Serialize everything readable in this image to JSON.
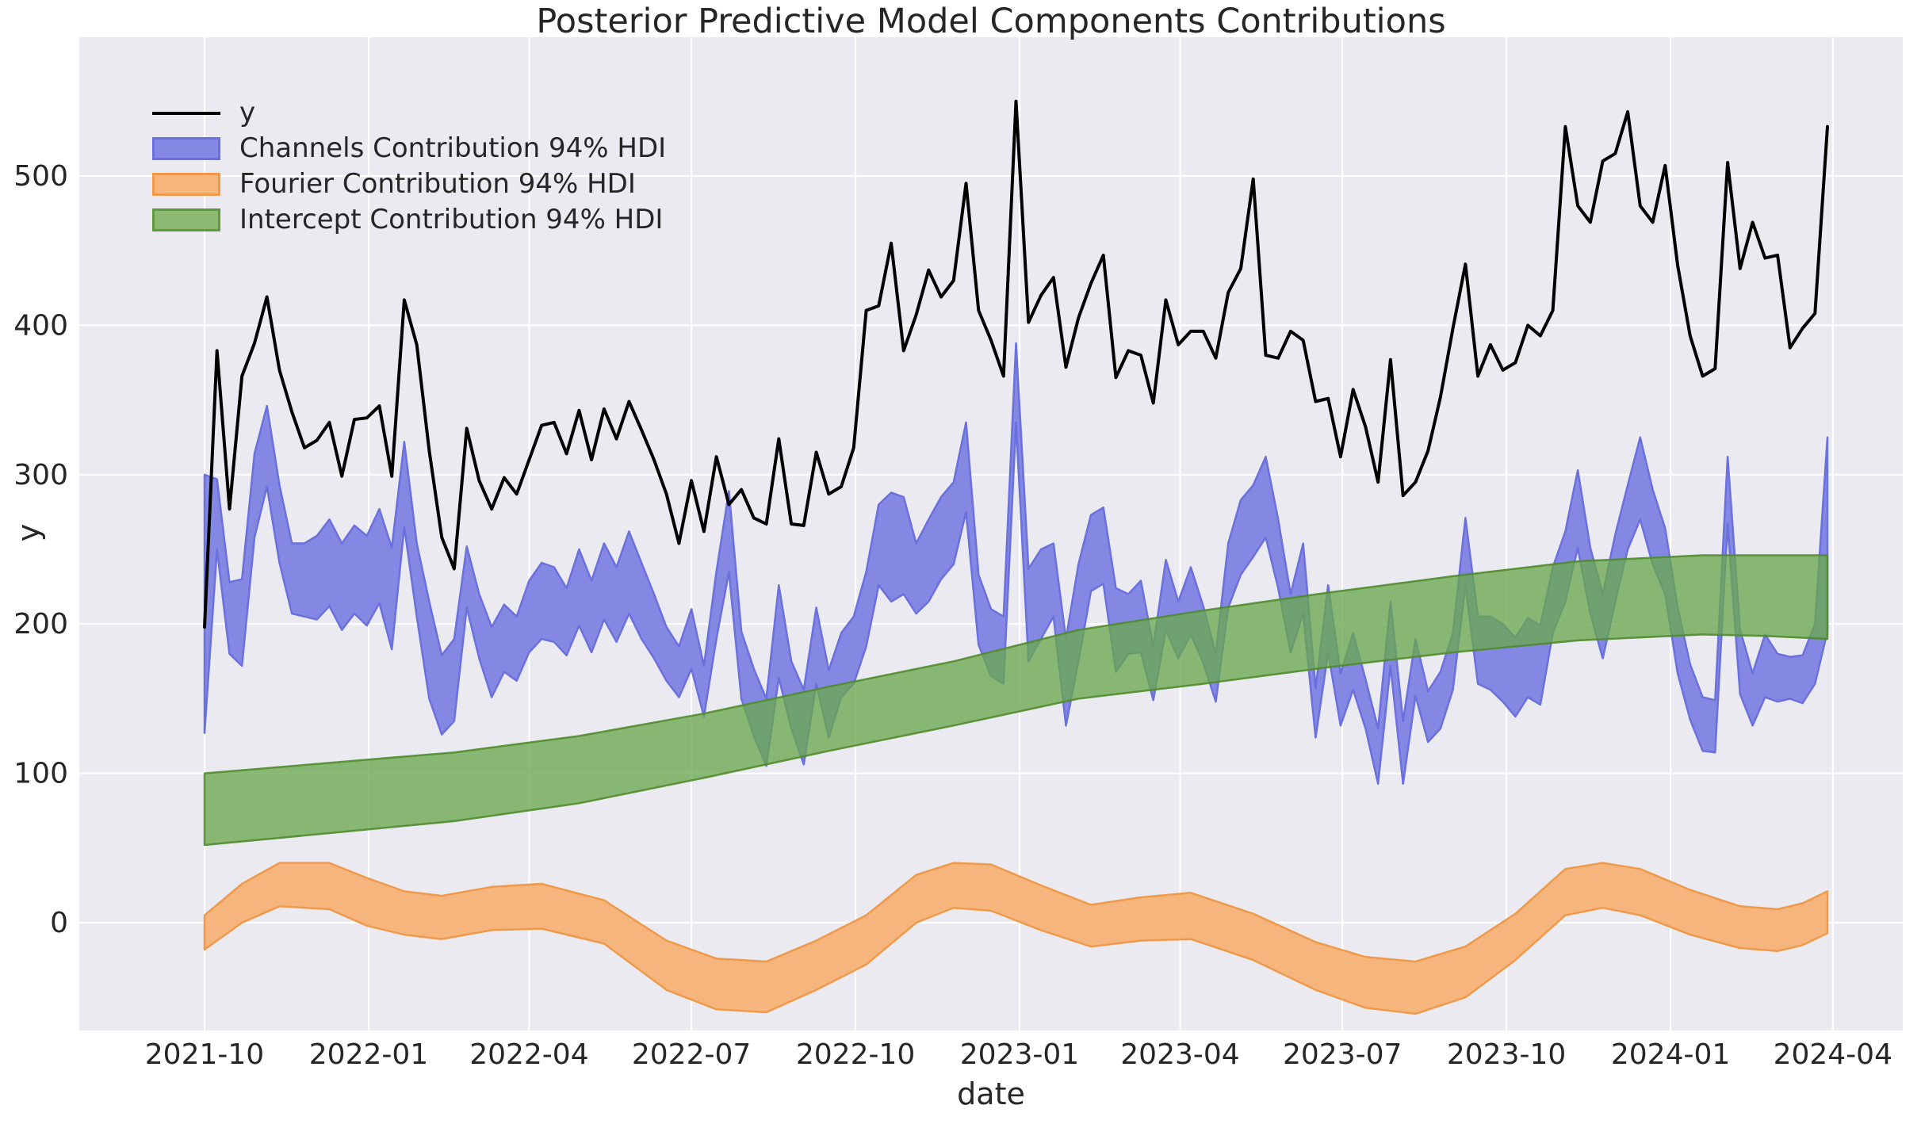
{
  "title": "Posterior Predictive Model Components Contributions",
  "xlabel": "date",
  "ylabel": "y",
  "colors": {
    "plot_background": "#eaeaf0",
    "grid": "#ffffff",
    "text": "#262626",
    "y_line": "#000000",
    "channels_fill": "#8488e3",
    "channels_stroke": "#6a70dc",
    "fourier_fill": "#f6b57d",
    "fourier_stroke": "#ef9a4b",
    "intercept_fill": "rgba(106,168,79,0.78)",
    "intercept_stroke": "rgba(80,140,45,0.9)",
    "intercept_legend_fill": "#8cba72",
    "intercept_legend_stroke": "#5f9a3e"
  },
  "chart_data": {
    "type": "line",
    "title": "Posterior Predictive Model Components Contributions",
    "xlabel": "date",
    "ylabel": "y",
    "grid": true,
    "legend_position": "upper left",
    "ylim": [
      -72,
      593
    ],
    "y_ticks": [
      0,
      100,
      200,
      300,
      400,
      500
    ],
    "x_ticks": [
      "2021-10",
      "2022-01",
      "2022-04",
      "2022-07",
      "2022-10",
      "2023-01",
      "2023-04",
      "2023-07",
      "2023-10",
      "2024-01",
      "2024-04"
    ],
    "legend": [
      {
        "label": "y",
        "kind": "line",
        "color": "#000000"
      },
      {
        "label": "Channels Contribution 94% HDI",
        "kind": "band",
        "fill": "#8488e3",
        "stroke": "#6a70dc"
      },
      {
        "label": "Fourier Contribution 94% HDI",
        "kind": "band",
        "fill": "#f6b57d",
        "stroke": "#ef9a4b"
      },
      {
        "label": "Intercept Contribution 94% HDI",
        "kind": "band",
        "fill": "#8cba72",
        "stroke": "#5f9a3e"
      }
    ],
    "dates": [
      "2021-10-01",
      "2021-10-08",
      "2021-10-15",
      "2021-10-22",
      "2021-10-29",
      "2021-11-05",
      "2021-11-12",
      "2021-11-19",
      "2021-11-26",
      "2021-12-03",
      "2021-12-10",
      "2021-12-17",
      "2021-12-24",
      "2021-12-31",
      "2022-01-07",
      "2022-01-14",
      "2022-01-21",
      "2022-01-28",
      "2022-02-04",
      "2022-02-11",
      "2022-02-18",
      "2022-02-25",
      "2022-03-04",
      "2022-03-11",
      "2022-03-18",
      "2022-03-25",
      "2022-04-01",
      "2022-04-08",
      "2022-04-15",
      "2022-04-22",
      "2022-04-29",
      "2022-05-06",
      "2022-05-13",
      "2022-05-20",
      "2022-05-27",
      "2022-06-03",
      "2022-06-10",
      "2022-06-17",
      "2022-06-24",
      "2022-07-01",
      "2022-07-08",
      "2022-07-15",
      "2022-07-22",
      "2022-07-29",
      "2022-08-05",
      "2022-08-12",
      "2022-08-19",
      "2022-08-26",
      "2022-09-02",
      "2022-09-09",
      "2022-09-16",
      "2022-09-23",
      "2022-09-30",
      "2022-10-07",
      "2022-10-14",
      "2022-10-21",
      "2022-10-28",
      "2022-11-04",
      "2022-11-11",
      "2022-11-18",
      "2022-11-25",
      "2022-12-02",
      "2022-12-09",
      "2022-12-16",
      "2022-12-23",
      "2022-12-30",
      "2023-01-06",
      "2023-01-13",
      "2023-01-20",
      "2023-01-27",
      "2023-02-03",
      "2023-02-10",
      "2023-02-17",
      "2023-02-24",
      "2023-03-03",
      "2023-03-10",
      "2023-03-17",
      "2023-03-24",
      "2023-03-31",
      "2023-04-07",
      "2023-04-14",
      "2023-04-21",
      "2023-04-28",
      "2023-05-05",
      "2023-05-12",
      "2023-05-19",
      "2023-05-26",
      "2023-06-02",
      "2023-06-09",
      "2023-06-16",
      "2023-06-23",
      "2023-06-30",
      "2023-07-07",
      "2023-07-14",
      "2023-07-21",
      "2023-07-28",
      "2023-08-04",
      "2023-08-11",
      "2023-08-18",
      "2023-08-25",
      "2023-09-01",
      "2023-09-08",
      "2023-09-15",
      "2023-09-22",
      "2023-09-29",
      "2023-10-06",
      "2023-10-13",
      "2023-10-20",
      "2023-10-27",
      "2023-11-03",
      "2023-11-10",
      "2023-11-17",
      "2023-11-24",
      "2023-12-01",
      "2023-12-08",
      "2023-12-15",
      "2023-12-22",
      "2023-12-29",
      "2024-01-05",
      "2024-01-12",
      "2024-01-19",
      "2024-01-26",
      "2024-02-02",
      "2024-02-09",
      "2024-02-16",
      "2024-02-23",
      "2024-03-01",
      "2024-03-08",
      "2024-03-15",
      "2024-03-22",
      "2024-03-29"
    ],
    "series": [
      {
        "name": "y",
        "kind": "line",
        "values": [
          198,
          383,
          277,
          366,
          388,
          419,
          370,
          342,
          318,
          323,
          335,
          299,
          337,
          338,
          346,
          299,
          417,
          387,
          316,
          258,
          237,
          331,
          296,
          277,
          298,
          287,
          310,
          333,
          335,
          314,
          343,
          310,
          344,
          324,
          349,
          330,
          310,
          287,
          254,
          296,
          262,
          312,
          280,
          290,
          271,
          267,
          324,
          267,
          266,
          315,
          287,
          292,
          318,
          410,
          413,
          455,
          383,
          407,
          437,
          419,
          430,
          495,
          410,
          390,
          366,
          550,
          402,
          420,
          432,
          372,
          405,
          428,
          447,
          365,
          383,
          380,
          348,
          417,
          387,
          396,
          396,
          378,
          422,
          438,
          498,
          380,
          378,
          396,
          390,
          349,
          351,
          312,
          357,
          332,
          295,
          377,
          286,
          295,
          316,
          352,
          398,
          441,
          366,
          387,
          370,
          375,
          400,
          393,
          410,
          533,
          480,
          469,
          510,
          515,
          543,
          480,
          469,
          507,
          440,
          393,
          366,
          371,
          509,
          438,
          469,
          445,
          447,
          385,
          398,
          408,
          533
        ]
      },
      {
        "name": "Channels Contribution 94% HDI",
        "kind": "band",
        "lower": [
          127,
          250,
          180,
          172,
          258,
          292,
          241,
          207,
          205,
          203,
          212,
          196,
          207,
          199,
          214,
          183,
          265,
          205,
          150,
          126,
          135,
          211,
          177,
          151,
          168,
          162,
          181,
          190,
          188,
          179,
          199,
          181,
          203,
          188,
          207,
          190,
          177,
          162,
          151,
          170,
          138,
          190,
          235,
          150,
          125,
          105,
          164,
          130,
          106,
          160,
          124,
          151,
          160,
          185,
          226,
          215,
          220,
          207,
          215,
          230,
          240,
          275,
          186,
          165,
          160,
          335,
          175,
          190,
          205,
          132,
          175,
          222,
          227,
          168,
          180,
          181,
          149,
          196,
          177,
          193,
          174,
          148,
          211,
          233,
          245,
          258,
          224,
          181,
          207,
          124,
          181,
          132,
          156,
          130,
          93,
          172,
          93,
          152,
          121,
          130,
          156,
          226,
          160,
          156,
          148,
          138,
          151,
          146,
          194,
          215,
          251,
          207,
          177,
          215,
          250,
          270,
          240,
          220,
          167,
          136,
          115,
          114,
          267,
          153,
          132,
          151,
          148,
          150,
          147,
          160,
          195
        ],
        "upper": [
          300,
          297,
          228,
          230,
          314,
          346,
          293,
          254,
          254,
          259,
          270,
          254,
          266,
          259,
          277,
          251,
          322,
          254,
          215,
          179,
          190,
          252,
          220,
          198,
          213,
          205,
          229,
          241,
          238,
          224,
          250,
          229,
          254,
          238,
          262,
          241,
          220,
          198,
          185,
          210,
          172,
          235,
          289,
          195,
          170,
          150,
          226,
          175,
          156,
          211,
          169,
          194,
          205,
          235,
          280,
          288,
          285,
          254,
          270,
          285,
          295,
          335,
          233,
          210,
          205,
          388,
          237,
          250,
          254,
          190,
          240,
          273,
          278,
          224,
          220,
          229,
          185,
          243,
          215,
          238,
          212,
          180,
          254,
          283,
          293,
          312,
          270,
          220,
          254,
          157,
          226,
          167,
          194,
          163,
          130,
          215,
          135,
          190,
          155,
          168,
          194,
          271,
          205,
          205,
          200,
          191,
          204,
          199,
          238,
          262,
          303,
          251,
          220,
          260,
          293,
          325,
          290,
          264,
          211,
          173,
          151,
          149,
          312,
          196,
          167,
          193,
          180,
          178,
          179,
          200,
          325
        ]
      },
      {
        "name": "Fourier Contribution 94% HDI",
        "kind": "band-anchors",
        "anchors_week_lo_hi": [
          [
            0,
            -18,
            5
          ],
          [
            3,
            0,
            26
          ],
          [
            6,
            11,
            40
          ],
          [
            10,
            9,
            40
          ],
          [
            13,
            -2,
            30
          ],
          [
            16,
            -8,
            21
          ],
          [
            19,
            -11,
            18
          ],
          [
            23,
            -5,
            24
          ],
          [
            27,
            -4,
            26
          ],
          [
            32,
            -14,
            15
          ],
          [
            37,
            -45,
            -12
          ],
          [
            41,
            -58,
            -24
          ],
          [
            45,
            -60,
            -26
          ],
          [
            49,
            -45,
            -12
          ],
          [
            53,
            -28,
            5
          ],
          [
            57,
            0,
            32
          ],
          [
            60,
            10,
            40
          ],
          [
            63,
            8,
            39
          ],
          [
            67,
            -5,
            25
          ],
          [
            71,
            -16,
            12
          ],
          [
            75,
            -12,
            17
          ],
          [
            79,
            -11,
            20
          ],
          [
            84,
            -25,
            6
          ],
          [
            89,
            -45,
            -13
          ],
          [
            93,
            -57,
            -23
          ],
          [
            97,
            -61,
            -26
          ],
          [
            101,
            -50,
            -16
          ],
          [
            105,
            -25,
            6
          ],
          [
            109,
            5,
            36
          ],
          [
            112,
            10,
            40
          ],
          [
            115,
            5,
            36
          ],
          [
            119,
            -8,
            22
          ],
          [
            123,
            -17,
            11
          ],
          [
            126,
            -19,
            9
          ],
          [
            128,
            -15,
            13
          ],
          [
            130,
            -7,
            21
          ]
        ]
      },
      {
        "name": "Intercept Contribution 94% HDI",
        "kind": "band-anchors",
        "anchors_week_lo_hi": [
          [
            0,
            52,
            100
          ],
          [
            10,
            60,
            107
          ],
          [
            20,
            68,
            114
          ],
          [
            30,
            80,
            125
          ],
          [
            40,
            97,
            140
          ],
          [
            50,
            115,
            158
          ],
          [
            60,
            132,
            175
          ],
          [
            70,
            150,
            196
          ],
          [
            80,
            160,
            209
          ],
          [
            90,
            171,
            221
          ],
          [
            100,
            181,
            232
          ],
          [
            110,
            189,
            242
          ],
          [
            120,
            193,
            246
          ],
          [
            125,
            192,
            246
          ],
          [
            130,
            190,
            246
          ]
        ]
      }
    ]
  }
}
